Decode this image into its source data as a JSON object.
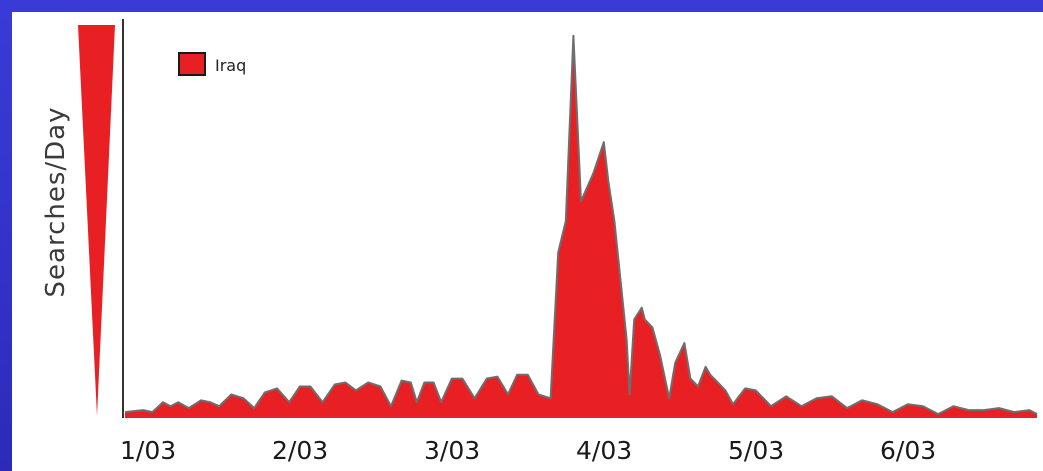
{
  "chart_data": {
    "type": "area",
    "title": "",
    "xlabel": "",
    "ylabel": "Searches/Day",
    "x_tick_labels": [
      "1/03",
      "2/03",
      "3/03",
      "4/03",
      "5/03",
      "6/03"
    ],
    "legend": {
      "entries": [
        "Iraq"
      ],
      "placement": "top-left"
    },
    "grid": false,
    "xlim": [
      0,
      6
    ],
    "ylim": [
      0,
      100
    ],
    "series": [
      {
        "name": "Iraq",
        "color": "#e82024",
        "x": [
          0.0,
          0.12,
          0.18,
          0.25,
          0.3,
          0.35,
          0.42,
          0.5,
          0.56,
          0.62,
          0.7,
          0.78,
          0.85,
          0.92,
          1.0,
          1.08,
          1.15,
          1.22,
          1.3,
          1.38,
          1.45,
          1.52,
          1.6,
          1.68,
          1.75,
          1.82,
          1.88,
          1.92,
          1.97,
          2.03,
          2.08,
          2.15,
          2.22,
          2.3,
          2.38,
          2.45,
          2.52,
          2.58,
          2.65,
          2.72,
          2.8,
          2.85,
          2.9,
          2.95,
          3.0,
          3.08,
          3.15,
          3.18,
          3.22,
          3.26,
          3.3,
          3.32,
          3.35,
          3.4,
          3.42,
          3.47,
          3.52,
          3.58,
          3.62,
          3.68,
          3.72,
          3.77,
          3.82,
          3.85,
          3.9,
          3.95,
          4.0,
          4.08,
          4.15,
          4.25,
          4.35,
          4.45,
          4.55,
          4.65,
          4.75,
          4.85,
          4.95,
          5.05,
          5.15,
          5.25,
          5.35,
          5.45,
          5.55,
          5.65,
          5.75,
          5.85,
          5.95,
          6.0
        ],
        "values": [
          1.5,
          2.0,
          1.5,
          4.0,
          3.0,
          4.0,
          2.5,
          4.5,
          4.0,
          3.0,
          6.0,
          5.0,
          2.5,
          6.5,
          7.5,
          4.0,
          8.0,
          8.0,
          4.0,
          8.5,
          9.0,
          7.0,
          9.0,
          8.0,
          3.0,
          9.5,
          9.0,
          4.0,
          9.0,
          9.0,
          4.0,
          10.0,
          10.0,
          5.0,
          10.0,
          10.5,
          6.0,
          11.0,
          11.0,
          6.0,
          5.0,
          42.0,
          50.0,
          97.0,
          55.0,
          62.0,
          70.0,
          60.0,
          50.0,
          35.0,
          20.0,
          6.0,
          25.0,
          28.0,
          25.0,
          23.0,
          16.0,
          5.0,
          14.0,
          19.0,
          10.0,
          8.0,
          13.0,
          11.0,
          9.0,
          7.0,
          3.5,
          7.5,
          7.0,
          3.0,
          5.5,
          3.0,
          5.0,
          5.5,
          2.5,
          4.5,
          3.5,
          1.5,
          3.5,
          3.0,
          1.0,
          3.0,
          2.0,
          2.0,
          2.5,
          1.5,
          2.0,
          1.0
        ]
      }
    ]
  }
}
